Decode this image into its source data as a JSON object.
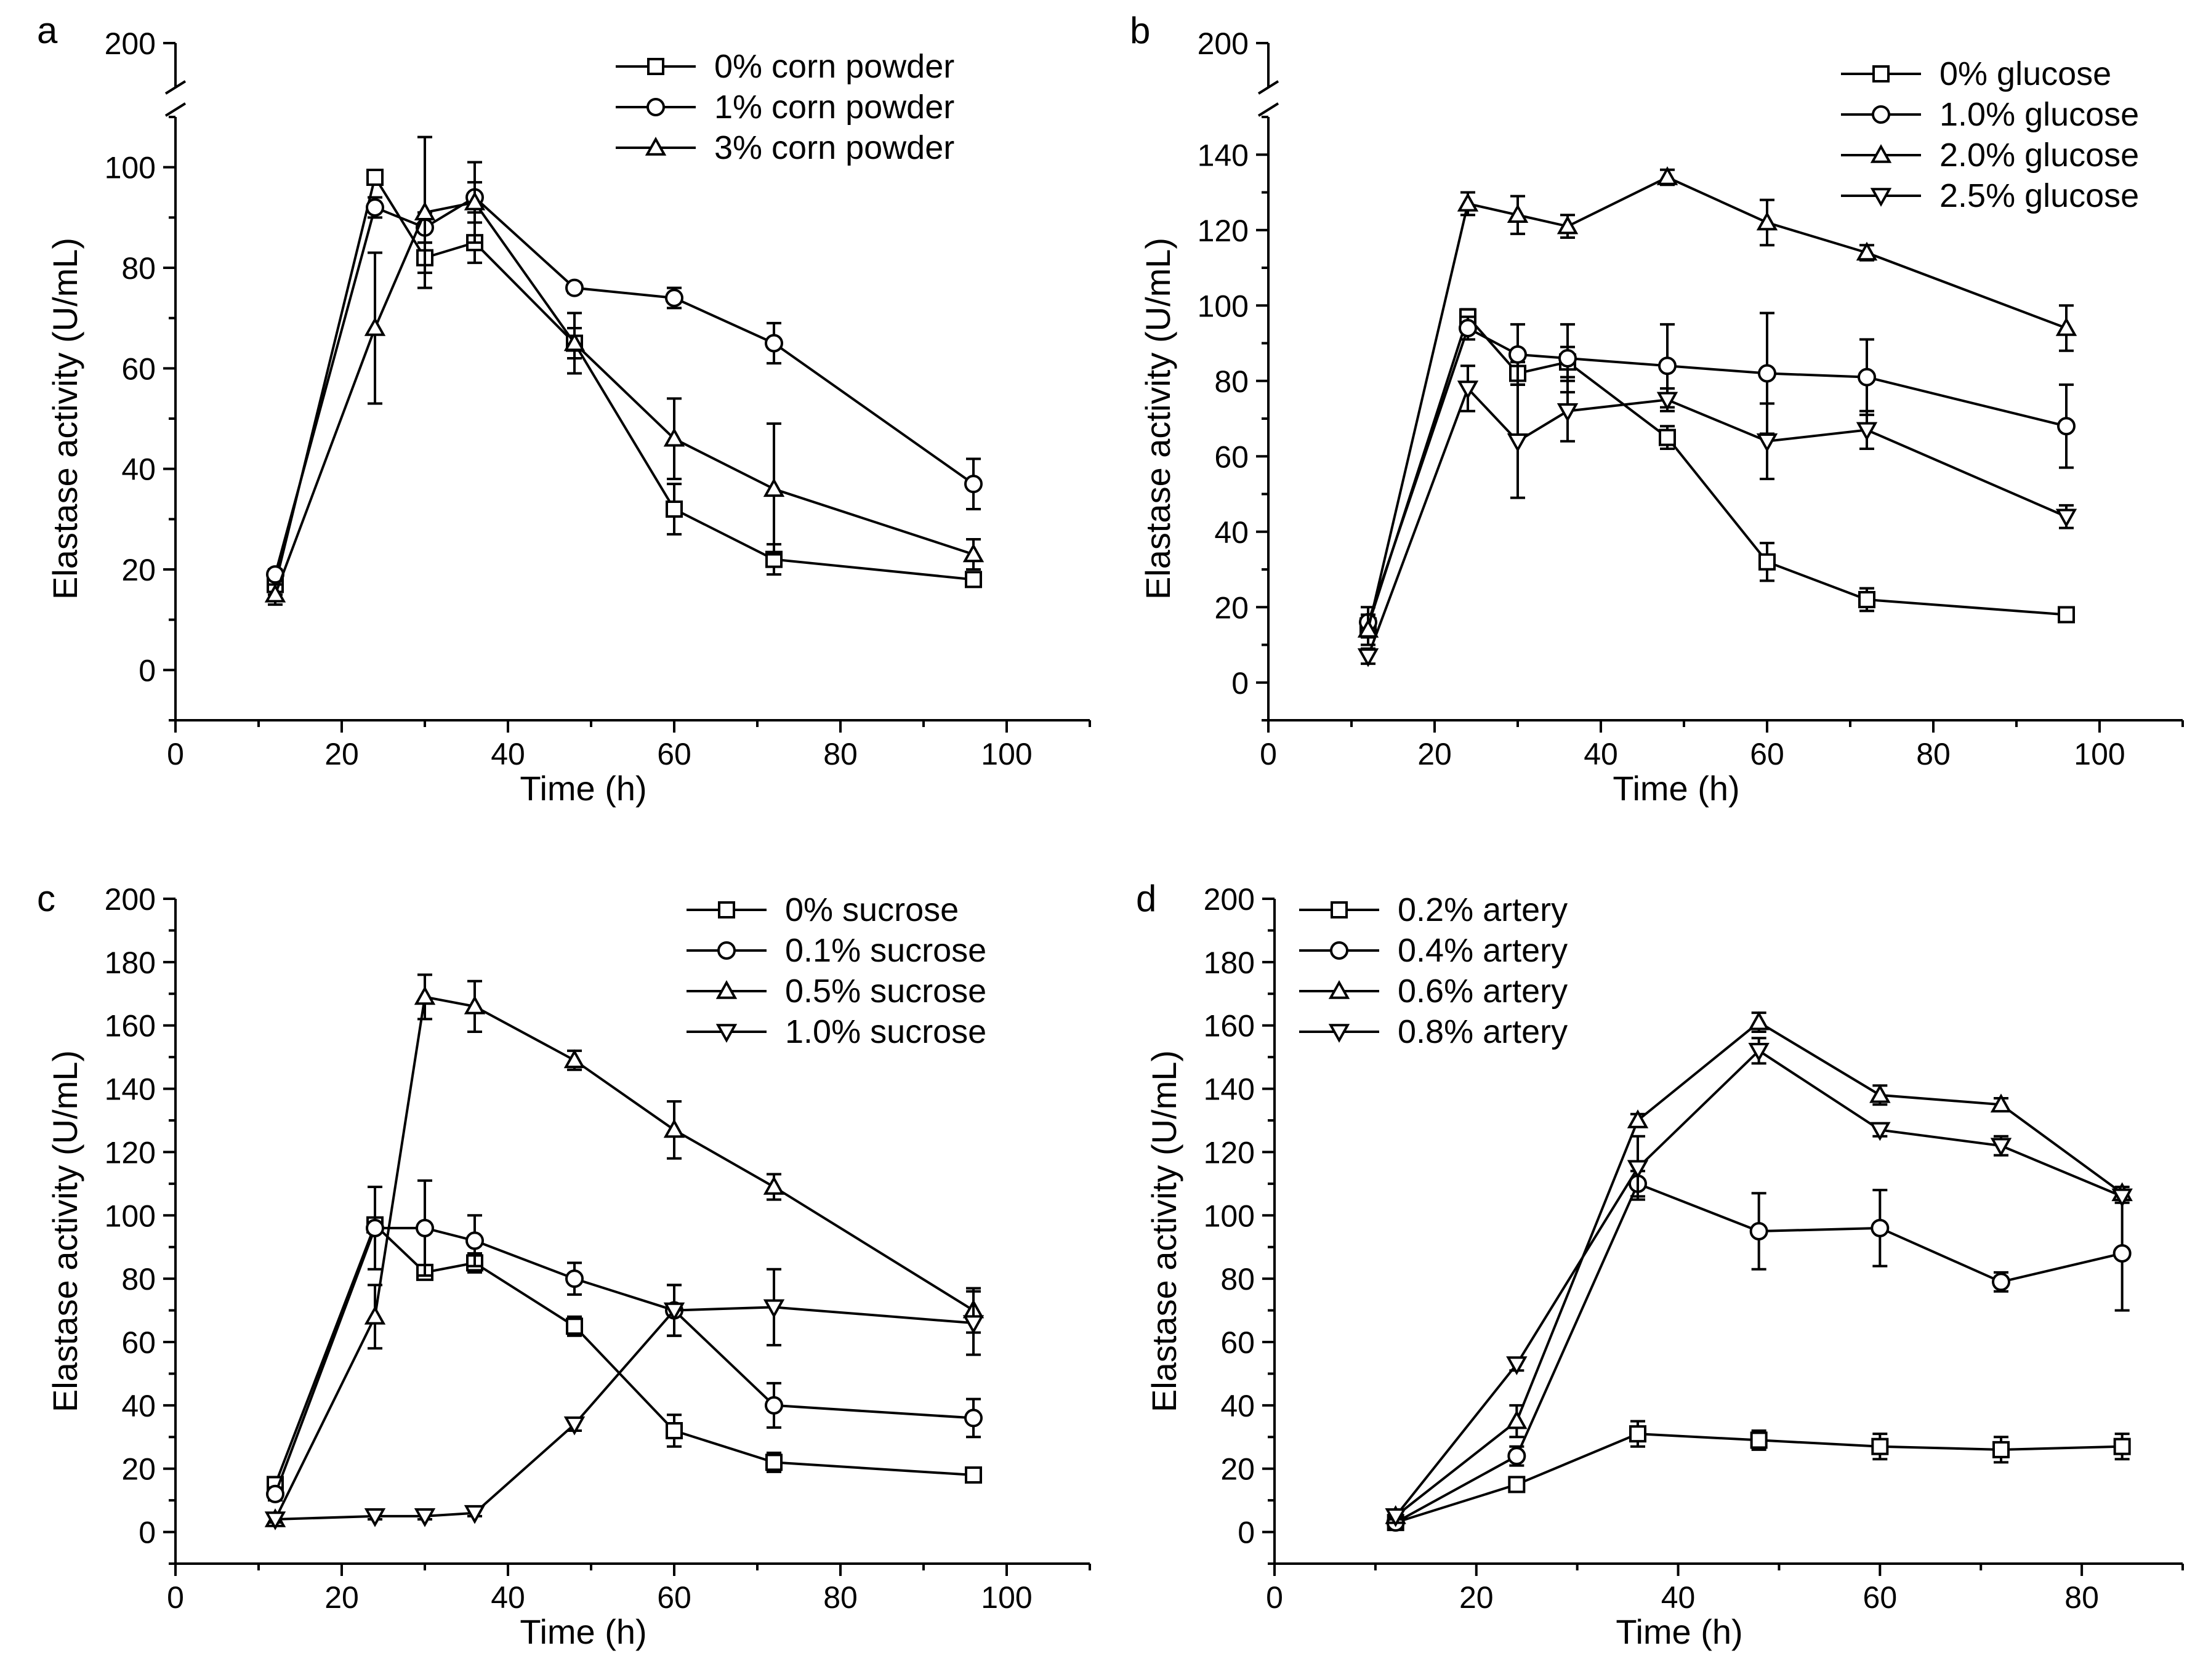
{
  "chart_data": [
    {
      "type": "line",
      "panel": "a",
      "xlabel": "Time (h)",
      "ylabel": "Elastase activity (U/mL)",
      "xlim": [
        0,
        110
      ],
      "ylim": [
        -10,
        110
      ],
      "xticks": [
        0,
        20,
        40,
        60,
        80,
        100
      ],
      "yticks": [
        0,
        20,
        40,
        60,
        80,
        100
      ],
      "y_break": true,
      "y_break_label": "200",
      "legend_position": "top-right",
      "x": [
        12,
        24,
        30,
        36,
        48,
        60,
        72,
        96
      ],
      "series": [
        {
          "name": "0% corn powder",
          "marker": "square",
          "values": [
            17,
            98,
            82,
            85,
            65,
            32,
            22,
            18
          ],
          "errors": [
            2,
            1,
            3,
            4,
            3,
            5,
            3,
            1
          ]
        },
        {
          "name": "1% corn powder",
          "marker": "circle",
          "values": [
            19,
            92,
            88,
            94,
            76,
            74,
            65,
            37
          ],
          "errors": [
            1,
            2,
            3,
            3,
            1,
            2,
            4,
            5
          ]
        },
        {
          "name": "3% corn powder",
          "marker": "triangle-up",
          "values": [
            15,
            68,
            91,
            93,
            65,
            46,
            36,
            23
          ],
          "errors": [
            2,
            15,
            15,
            8,
            6,
            8,
            13,
            3
          ]
        }
      ]
    },
    {
      "type": "line",
      "panel": "b",
      "xlabel": "Time (h)",
      "ylabel": "Elastase activity (U/mL)",
      "xlim": [
        0,
        110
      ],
      "ylim": [
        -10,
        150
      ],
      "xticks": [
        0,
        20,
        40,
        60,
        80,
        100
      ],
      "yticks": [
        0,
        20,
        40,
        60,
        80,
        100,
        120,
        140
      ],
      "y_break": true,
      "y_break_label": "200",
      "legend_position": "top-right",
      "x": [
        12,
        24,
        30,
        36,
        48,
        60,
        72,
        96
      ],
      "series": [
        {
          "name": "0% glucose",
          "marker": "square",
          "values": [
            15,
            97,
            82,
            85,
            65,
            32,
            22,
            18
          ],
          "errors": [
            3,
            2,
            3,
            4,
            3,
            5,
            3,
            1
          ]
        },
        {
          "name": "1.0% glucose",
          "marker": "circle",
          "values": [
            16,
            94,
            87,
            86,
            84,
            82,
            81,
            68
          ],
          "errors": [
            4,
            3,
            8,
            9,
            11,
            16,
            10,
            11
          ]
        },
        {
          "name": "2.0% glucose",
          "marker": "triangle-up",
          "values": [
            14,
            127,
            124,
            121,
            134,
            122,
            114,
            94
          ],
          "errors": [
            4,
            3,
            5,
            3,
            2,
            6,
            2,
            6
          ]
        },
        {
          "name": "2.5% glucose",
          "marker": "triangle-down",
          "values": [
            7,
            78,
            64,
            72,
            75,
            64,
            67,
            44
          ],
          "errors": [
            2,
            6,
            15,
            8,
            3,
            10,
            5,
            3
          ]
        }
      ]
    },
    {
      "type": "line",
      "panel": "c",
      "xlabel": "Time (h)",
      "ylabel": "Elastase activity (U/mL)",
      "xlim": [
        0,
        110
      ],
      "ylim": [
        -10,
        200
      ],
      "xticks": [
        0,
        20,
        40,
        60,
        80,
        100
      ],
      "yticks": [
        0,
        20,
        40,
        60,
        80,
        100,
        120,
        140,
        160,
        180,
        200
      ],
      "y_break": false,
      "legend_position": "top-right",
      "x": [
        12,
        24,
        30,
        36,
        48,
        60,
        72,
        96
      ],
      "series": [
        {
          "name": "0% sucrose",
          "marker": "square",
          "values": [
            15,
            97,
            82,
            85,
            65,
            32,
            22,
            18
          ],
          "errors": [
            2,
            2,
            2,
            3,
            3,
            5,
            3,
            1
          ]
        },
        {
          "name": "0.1% sucrose",
          "marker": "circle",
          "values": [
            12,
            96,
            96,
            92,
            80,
            70,
            40,
            36
          ],
          "errors": [
            2,
            13,
            15,
            8,
            5,
            8,
            7,
            6
          ]
        },
        {
          "name": "0.5% sucrose",
          "marker": "triangle-up",
          "values": [
            4,
            68,
            169,
            166,
            149,
            127,
            109,
            70
          ],
          "errors": [
            1,
            10,
            7,
            8,
            3,
            9,
            4,
            7
          ]
        },
        {
          "name": "1.0% sucrose",
          "marker": "triangle-down",
          "values": [
            4,
            5,
            5,
            6,
            34,
            70,
            71,
            66
          ],
          "errors": [
            1,
            1,
            1,
            1,
            2,
            8,
            12,
            10
          ]
        }
      ]
    },
    {
      "type": "line",
      "panel": "d",
      "xlabel": "Time (h)",
      "ylabel": "Elastase activity (U/mL)",
      "xlim": [
        0,
        90
      ],
      "ylim": [
        -10,
        200
      ],
      "xticks": [
        0,
        20,
        40,
        60,
        80
      ],
      "yticks": [
        0,
        20,
        40,
        60,
        80,
        100,
        120,
        140,
        160,
        180,
        200
      ],
      "y_break": false,
      "legend_position": "top-left",
      "x": [
        12,
        24,
        36,
        48,
        60,
        72,
        84
      ],
      "series": [
        {
          "name": "0.2% artery",
          "marker": "square",
          "values": [
            3,
            15,
            31,
            29,
            27,
            26,
            27
          ],
          "errors": [
            1,
            2,
            4,
            3,
            4,
            4,
            4
          ]
        },
        {
          "name": "0.4% artery",
          "marker": "circle",
          "values": [
            3,
            24,
            110,
            95,
            96,
            79,
            88
          ],
          "errors": [
            1,
            3,
            4,
            12,
            12,
            3,
            18
          ]
        },
        {
          "name": "0.6% artery",
          "marker": "triangle-up",
          "values": [
            5,
            35,
            130,
            161,
            138,
            135,
            107
          ],
          "errors": [
            1,
            5,
            2,
            3,
            3,
            2,
            2
          ]
        },
        {
          "name": "0.8% artery",
          "marker": "triangle-down",
          "values": [
            5,
            53,
            115,
            152,
            127,
            122,
            106
          ],
          "errors": [
            1,
            2,
            10,
            4,
            2,
            3,
            2
          ]
        }
      ]
    }
  ]
}
